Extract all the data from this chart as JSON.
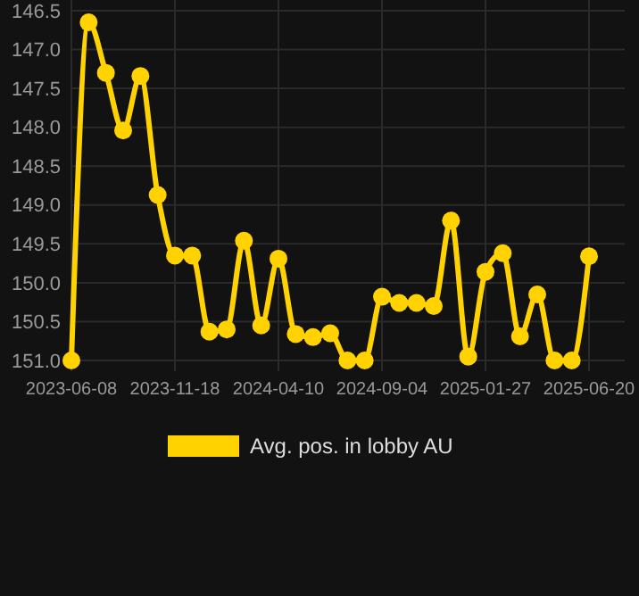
{
  "chart_data": {
    "type": "line",
    "categories": [
      "2023-06-08",
      null,
      null,
      null,
      null,
      null,
      "2023-11-18",
      null,
      null,
      null,
      null,
      null,
      "2024-04-10",
      null,
      null,
      null,
      null,
      null,
      "2024-09-04",
      null,
      null,
      null,
      null,
      null,
      "2025-01-27",
      null,
      null,
      null,
      null,
      null,
      "2025-06-20"
    ],
    "series": [
      {
        "name": "Avg. pos. in lobby AU",
        "color": "#ffd200",
        "values": [
          151.0,
          146.65,
          147.3,
          148.04,
          147.34,
          148.87,
          149.65,
          149.65,
          150.63,
          150.6,
          149.46,
          150.55,
          149.69,
          150.66,
          150.7,
          150.65,
          151.0,
          151.0,
          150.18,
          150.26,
          150.26,
          150.3,
          149.2,
          150.95,
          149.86,
          149.62,
          150.69,
          150.15,
          151.0,
          151.0,
          149.66
        ]
      }
    ],
    "ylim": [
      151.0,
      146.5
    ],
    "yticks": [
      {
        "value": 146.5,
        "label": "146.5"
      },
      {
        "value": 147,
        "label": "147.0"
      },
      {
        "value": 147.5,
        "label": "147.5"
      },
      {
        "value": 148,
        "label": "148.0"
      },
      {
        "value": 148.5,
        "label": "148.5"
      },
      {
        "value": 149,
        "label": "149.0"
      },
      {
        "value": 149.5,
        "label": "149.5"
      },
      {
        "value": 150,
        "label": "150.0"
      },
      {
        "value": 150.5,
        "label": "150.5"
      },
      {
        "value": 151,
        "label": "151.0"
      }
    ],
    "grid": true,
    "legend": "bottom",
    "marker": "circle",
    "line_style": "solid"
  }
}
